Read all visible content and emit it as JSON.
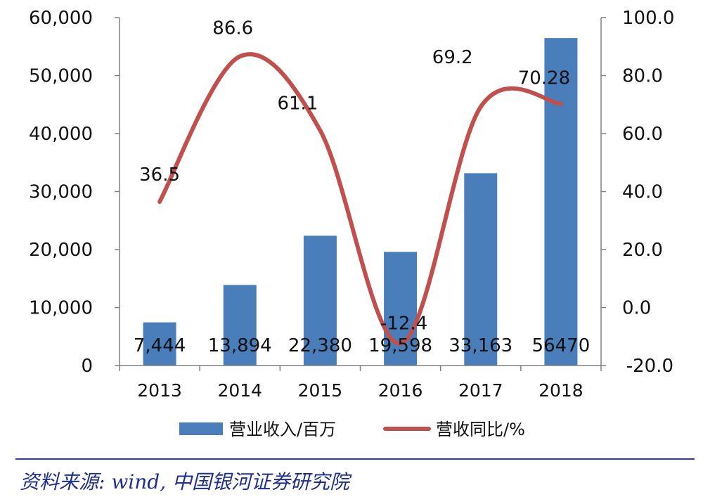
{
  "chart_data": {
    "type": "bar+line",
    "categories": [
      "2013",
      "2014",
      "2015",
      "2016",
      "2017",
      "2018"
    ],
    "series": [
      {
        "name": "营业收入/百万",
        "type": "bar",
        "axis": "left",
        "color": "#4a7ebb",
        "values": [
          7444,
          13894,
          22380,
          19598,
          33163,
          56470
        ],
        "labels": [
          "7,444",
          "13,894",
          "22,380",
          "19,598",
          "33,163",
          "56470"
        ]
      },
      {
        "name": "营收同比/%",
        "type": "line",
        "axis": "right",
        "color": "#c0504d",
        "values": [
          36.5,
          86.6,
          61.1,
          -12.4,
          69.2,
          70.28
        ],
        "labels": [
          "36.5",
          "86.6",
          "61.1",
          "-12.4",
          "69.2",
          "70.28"
        ]
      }
    ],
    "y_left": {
      "ylim": [
        0,
        60000
      ],
      "ticks": [
        0,
        10000,
        20000,
        30000,
        40000,
        50000,
        60000
      ],
      "tick_labels": [
        "0",
        "10,000",
        "20,000",
        "30,000",
        "40,000",
        "50,000",
        "60,000"
      ]
    },
    "y_right": {
      "ylim": [
        -20,
        100
      ],
      "ticks": [
        -20,
        0,
        20,
        40,
        60,
        80,
        100
      ],
      "tick_labels": [
        "-20.0",
        "0.0",
        "20.0",
        "40.0",
        "60.0",
        "80.0",
        "100.0"
      ]
    },
    "colors": {
      "bar": "#4a7ebb",
      "line": "#c0504d",
      "negative": "#ff0000",
      "axis": "#808080"
    },
    "legend": {
      "position": "bottom",
      "entries": [
        "营业收入/百万",
        "营收同比/%"
      ]
    }
  },
  "source_text": "资料来源: wind, 中国银河证券研究院"
}
